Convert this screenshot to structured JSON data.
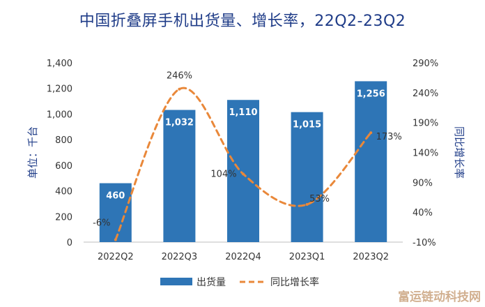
{
  "chart_data": {
    "type": "bar",
    "title": "中国折叠屏手机出货量、增长率，22Q2-23Q2",
    "categories": [
      "2022Q2",
      "2022Q3",
      "2022Q4",
      "2023Q1",
      "2023Q2"
    ],
    "series": [
      {
        "name": "出货量",
        "type": "bar",
        "axis": "left",
        "color": "#2e75b6",
        "values": [
          460,
          1032,
          1110,
          1015,
          1256
        ],
        "labels": [
          "460",
          "1,032",
          "1,110",
          "1,015",
          "1,256"
        ]
      },
      {
        "name": "同比增长率",
        "type": "line",
        "axis": "right",
        "style": "dashed",
        "color": "#e9883a",
        "values": [
          -6,
          246,
          104,
          53,
          173
        ],
        "labels": [
          "-6%",
          "246%",
          "104%",
          "53%",
          "173%"
        ]
      }
    ],
    "ylabel": "单位：千台",
    "y2label": "同比增长率",
    "ylim": [
      0,
      1400
    ],
    "y2lim": [
      -10,
      290
    ],
    "yticks": [
      "0",
      "200",
      "400",
      "600",
      "800",
      "1,000",
      "1,200",
      "1,400"
    ],
    "y2ticks": [
      "-10%",
      "40%",
      "90%",
      "140%",
      "190%",
      "240%",
      "290%"
    ],
    "grid": false,
    "legend": "bottom-center"
  },
  "watermark": "富运链动科技网"
}
